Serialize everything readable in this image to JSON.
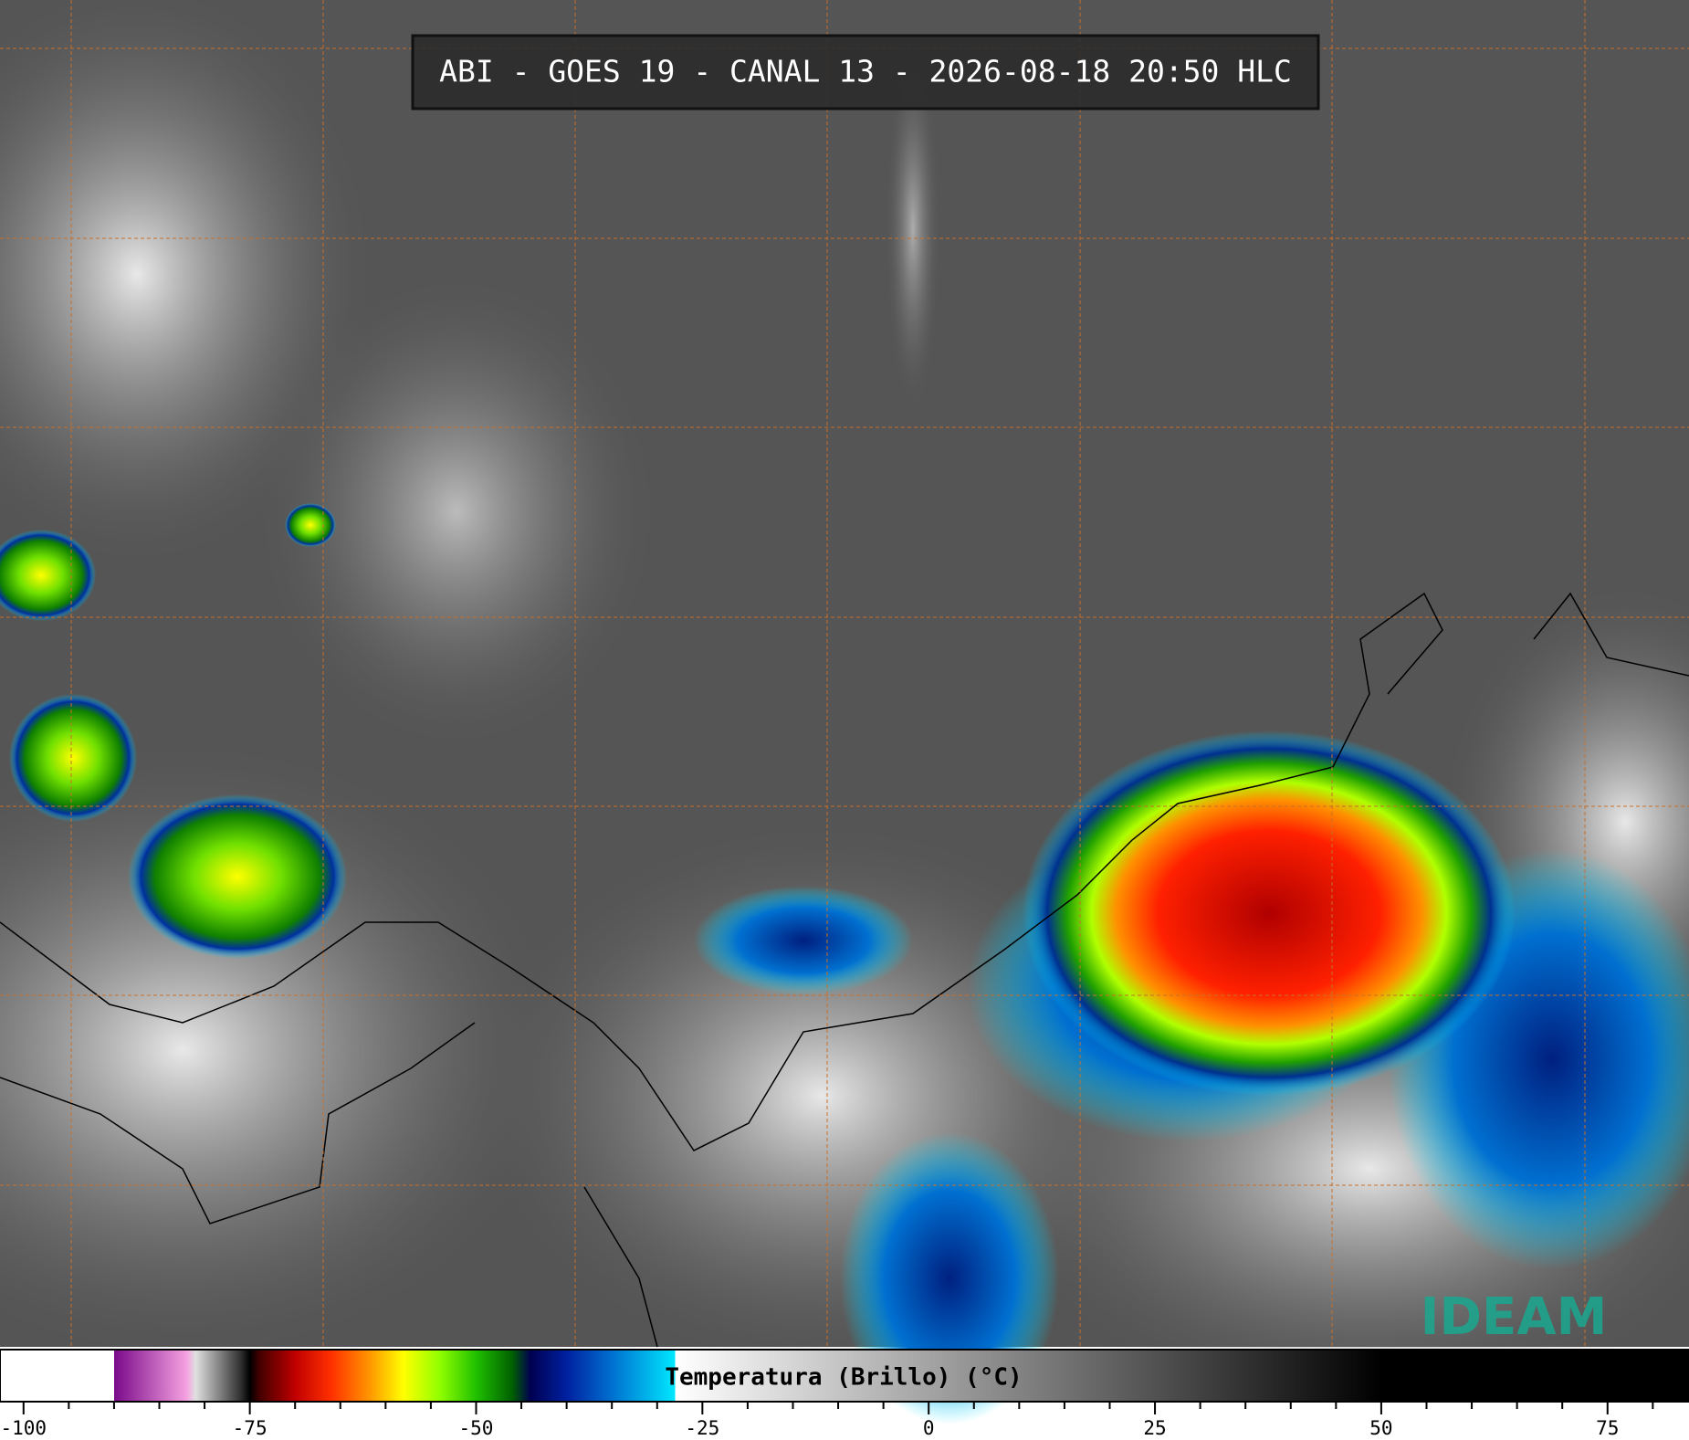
{
  "title": "ABI - GOES 19 - CANAL 13 - 2026-08-18 20:50 HLC",
  "logo": "IDEAM",
  "colorbar": {
    "label": "Temperatura (Brillo) (°C)",
    "xlim": [
      -102.6,
      84
    ],
    "xticks": [
      -100,
      -75,
      -50,
      -25,
      0,
      25,
      50,
      75
    ],
    "minor_ticks": [
      -95,
      -90,
      -85,
      -80,
      -70,
      -65,
      -60,
      -55,
      -45,
      -40,
      -35,
      -30,
      -20,
      -15,
      -10,
      -5,
      5,
      10,
      15,
      20,
      30,
      35,
      40,
      45,
      55,
      60,
      65,
      70,
      80
    ],
    "colormap": [
      {
        "value": -102.6,
        "color": "#ffffff"
      },
      {
        "value": -90,
        "color": "#ffffff"
      },
      {
        "value": -90,
        "color": "#7a0a8a"
      },
      {
        "value": -82,
        "color": "#f4a0e0"
      },
      {
        "value": -81,
        "color": "#e0e0e0"
      },
      {
        "value": -76,
        "color": "#303030"
      },
      {
        "value": -75,
        "color": "#000000"
      },
      {
        "value": -74,
        "color": "#400000"
      },
      {
        "value": -70,
        "color": "#c00000"
      },
      {
        "value": -66,
        "color": "#ff3000"
      },
      {
        "value": -62,
        "color": "#ff9000"
      },
      {
        "value": -58,
        "color": "#ffff00"
      },
      {
        "value": -54,
        "color": "#90ff00"
      },
      {
        "value": -50,
        "color": "#20c000"
      },
      {
        "value": -46,
        "color": "#006000"
      },
      {
        "value": -44,
        "color": "#000050"
      },
      {
        "value": -40,
        "color": "#0020a0"
      },
      {
        "value": -35,
        "color": "#0070d0"
      },
      {
        "value": -28,
        "color": "#00e8ff"
      },
      {
        "value": -28,
        "color": "#ffffff"
      },
      {
        "value": 50,
        "color": "#000000"
      },
      {
        "value": 84,
        "color": "#000000"
      }
    ]
  }
}
